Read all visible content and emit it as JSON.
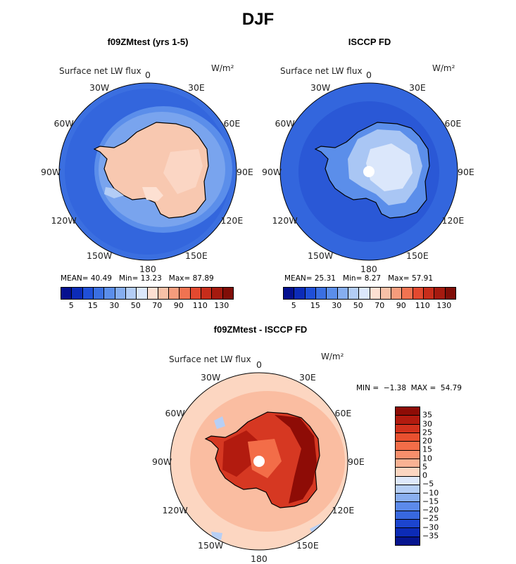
{
  "figure_title": "DJF",
  "panels": [
    {
      "title": "f09ZMtest (yrs 1-5)",
      "variable": "Surface net LW flux",
      "units": "W/m²",
      "stats": "MEAN= 40.49   Min= 13.23   Max= 87.89"
    },
    {
      "title": "ISCCP FD",
      "variable": "Surface net LW flux",
      "units": "W/m²",
      "stats": "MEAN= 25.31   Min= 8.27   Max= 57.91"
    },
    {
      "title": "f09ZMtest - ISCCP FD",
      "variable": "Surface net LW flux",
      "units": "W/m²",
      "stats": "MIN =  −1.38  MAX =  54.79"
    }
  ],
  "lon_labels": [
    "0",
    "30E",
    "60E",
    "90E",
    "120E",
    "150E",
    "180",
    "150W",
    "120W",
    "90W",
    "60W",
    "30W"
  ],
  "abs_colorbar": {
    "tick_labels": [
      "5",
      "15",
      "30",
      "50",
      "70",
      "90",
      "110",
      "130"
    ],
    "colors": [
      "#05108f",
      "#0c2bb8",
      "#1f4fd8",
      "#3a6fe2",
      "#5b8eea",
      "#86aef0",
      "#b3cdf6",
      "#dbe7fb",
      "#fde0d2",
      "#f8c1a7",
      "#f59c7c",
      "#f07351",
      "#e2492f",
      "#c72d1b",
      "#a51a0f",
      "#800e08"
    ]
  },
  "diff_colorbar": {
    "tick_labels": [
      "35",
      "30",
      "25",
      "20",
      "15",
      "10",
      "5",
      "0",
      "−5",
      "−10",
      "−15",
      "−20",
      "−25",
      "−30",
      "−35"
    ],
    "colors": [
      "#8e0c06",
      "#b21b0f",
      "#d2321d",
      "#e8502f",
      "#f36d48",
      "#f78f6c",
      "#f9b293",
      "#fcd6c1",
      "#dfe9fb",
      "#b7cff5",
      "#8aaff0",
      "#5c8aea",
      "#3868df",
      "#1c45cf",
      "#0c2bb6",
      "#06158f"
    ]
  },
  "colors": {
    "ocean_blue": "#3b6fe0",
    "ocean_deep": "#2a58d6",
    "antarctica_abs": "#f8c8b0",
    "antarctica_obs": "#d4e3fa",
    "diff_background": "#fcd6c1",
    "diff_land": "#d63822",
    "diff_land_dark": "#8e0c06"
  }
}
